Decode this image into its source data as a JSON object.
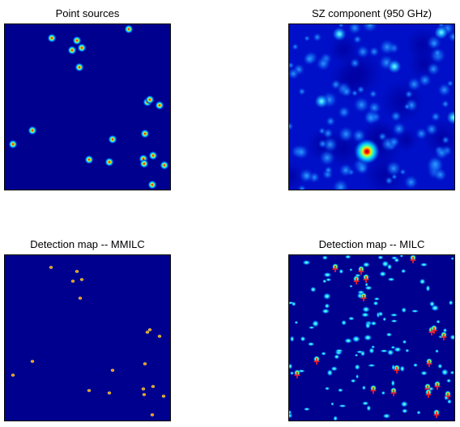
{
  "panels": [
    {
      "title": "Point sources"
    },
    {
      "title": "SZ component (950 GHz)"
    },
    {
      "title": "Detection map -- MMILC"
    },
    {
      "title": "Detection map -- MILC"
    }
  ],
  "colors": {
    "background": "#00008f",
    "colormap": "jet",
    "marker": "#ff2020"
  }
}
